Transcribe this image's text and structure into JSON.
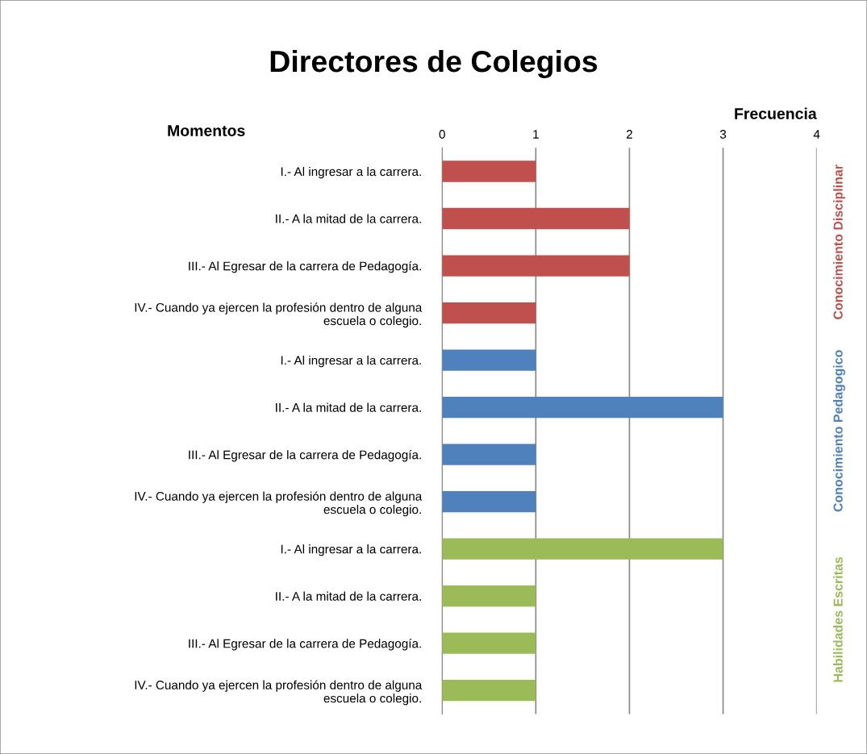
{
  "chart_data": {
    "type": "bar",
    "orientation": "horizontal",
    "title": "Directores de Colegios",
    "xlabel": "Frecuencia",
    "ylabel": "Momentos",
    "categories": [
      "I.- Al ingresar a la carrera.",
      "II.- A la mitad de la carrera.",
      "III.- Al Egresar de la carrera de Pedagogía.",
      "IV.- Cuando ya ejercen la profesión dentro de alguna\nescuela o colegio.",
      "I.- Al ingresar a la carrera.",
      "II.- A la mitad de la carrera.",
      "III.- Al Egresar de la carrera de Pedagogía.",
      "IV.- Cuando ya ejercen la profesión dentro de alguna\nescuela o colegio.",
      "I.- Al ingresar a la carrera.",
      "II.- A la mitad de la carrera.",
      "III.- Al Egresar de la carrera de Pedagogía.",
      "IV.- Cuando ya ejercen la profesión dentro de alguna\nescuela o colegio."
    ],
    "series": [
      {
        "name": "Conocimiento Disciplinar",
        "color": "#c0504d",
        "values": [
          1,
          2,
          2,
          1,
          null,
          null,
          null,
          null,
          null,
          null,
          null,
          null
        ]
      },
      {
        "name": "Conocimiento Pedagogico",
        "color": "#4f81bd",
        "values": [
          null,
          null,
          null,
          null,
          1,
          3,
          1,
          1,
          null,
          null,
          null,
          null
        ]
      },
      {
        "name": "Habilidades Escritas",
        "color": "#9bbb59",
        "values": [
          null,
          null,
          null,
          null,
          null,
          null,
          null,
          null,
          3,
          1,
          1,
          1
        ]
      }
    ],
    "xlim": [
      0,
      4
    ],
    "xticks": [
      0,
      1,
      2,
      3,
      4
    ],
    "grid": "x",
    "legend": false
  }
}
